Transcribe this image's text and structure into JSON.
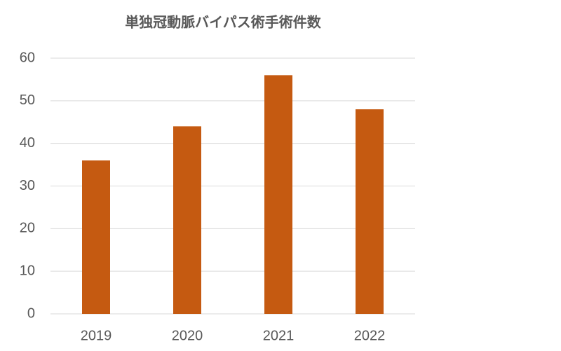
{
  "chart_data": {
    "type": "bar",
    "title": "単独冠動脈バイパス術手術件数",
    "categories": [
      "2019",
      "2020",
      "2021",
      "2022"
    ],
    "values": [
      36,
      44,
      56,
      48
    ],
    "color": "#c55a11",
    "ylim": [
      0,
      60
    ],
    "yticks": [
      0,
      10,
      20,
      30,
      40,
      50,
      60
    ],
    "grid": true
  }
}
